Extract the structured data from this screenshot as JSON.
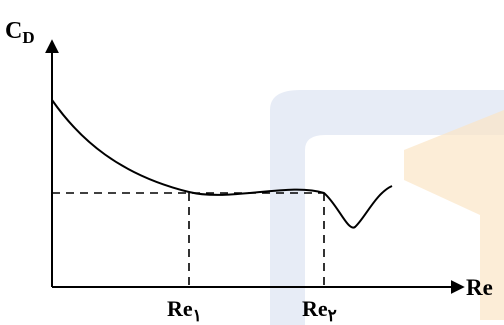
{
  "diagram": {
    "y_axis_label": "C",
    "y_axis_label_subscript": "D",
    "x_axis_label": "Re",
    "markers": [
      {
        "base": "Re",
        "subscript": "۱"
      },
      {
        "base": "Re",
        "subscript": "۲"
      }
    ],
    "watermark_colors": {
      "blue": "#dfe6f3",
      "orange": "#fbe6c6"
    }
  }
}
